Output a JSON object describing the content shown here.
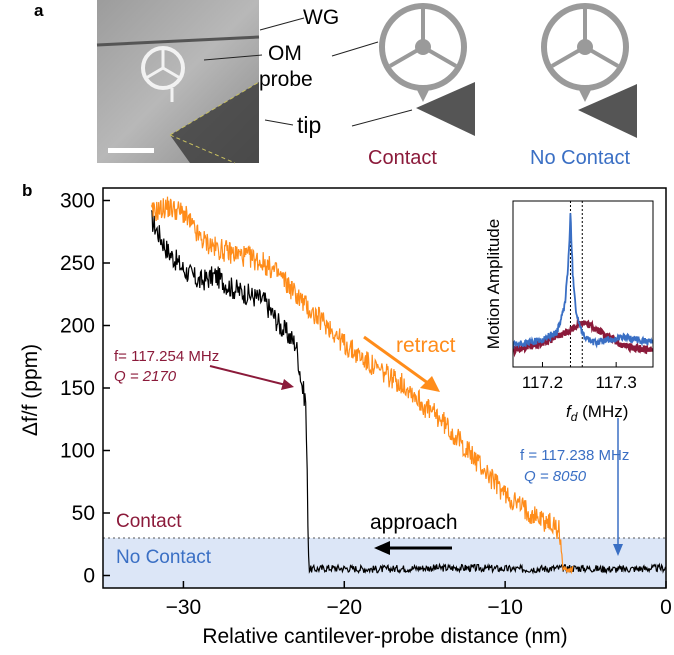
{
  "panel_a": {
    "panel_label": "a",
    "wg_label": "WG",
    "om_label": "OM",
    "probe_label": "probe",
    "tip_label": "tip",
    "contact_label": "Contact",
    "no_contact_label": "No Contact",
    "contact_color": "#8b1a3a",
    "no_contact_color": "#3a6fc4",
    "icon_gray": "#9a9a9a",
    "tip_gray": "#555555"
  },
  "panel_b": {
    "panel_label": "b",
    "retract_label": "retract",
    "approach_label": "approach",
    "contact_region_label": "Contact",
    "no_contact_region_label": "No Contact",
    "contact_annotation": {
      "f_text": "f= 117.254 MHz",
      "q_text": "Q = 2170"
    },
    "no_contact_annotation": {
      "f_text": "f = 117.238 MHz",
      "q_text": "Q = 8050"
    }
  },
  "chart_data": [
    {
      "type": "line",
      "xlabel": "Relative cantilever-probe distance (nm)",
      "ylabel": "Δf/f (ppm)",
      "xlim": [
        -35,
        0
      ],
      "ylim": [
        -10,
        310
      ],
      "xticks": [
        -30,
        -20,
        -10,
        0
      ],
      "yticks": [
        0,
        50,
        100,
        150,
        200,
        250,
        300
      ],
      "threshold_y": 30,
      "series": [
        {
          "name": "approach",
          "color": "#000000",
          "x": [
            -32,
            -31,
            -30,
            -29,
            -28,
            -27,
            -26,
            -25,
            -24,
            -23,
            -22.6,
            -22.4,
            -22.2,
            -22.0,
            -21,
            -18,
            -15,
            -12,
            -9,
            -6,
            -3,
            0
          ],
          "y": [
            285,
            260,
            245,
            235,
            240,
            230,
            225,
            220,
            200,
            185,
            150,
            140,
            5,
            5,
            6,
            5,
            6,
            6,
            5,
            6,
            5,
            6
          ]
        },
        {
          "name": "retract",
          "color": "#ff8c1a",
          "x": [
            -32,
            -31,
            -30,
            -29,
            -28,
            -27,
            -26,
            -25,
            -24,
            -23,
            -22,
            -21,
            -20,
            -19,
            -18,
            -17,
            -16,
            -15,
            -14,
            -13,
            -12,
            -11,
            -10,
            -9,
            -8,
            -7,
            -6.6,
            -6.4,
            -6.2,
            -5.8
          ],
          "y": [
            290,
            295,
            290,
            270,
            262,
            258,
            255,
            250,
            240,
            225,
            210,
            200,
            185,
            175,
            165,
            158,
            150,
            135,
            125,
            110,
            95,
            80,
            65,
            55,
            47,
            40,
            35,
            5,
            5,
            5
          ]
        }
      ]
    },
    {
      "type": "line",
      "xlabel": "fd (MHz)",
      "ylabel": "Motion Amplitude",
      "xlim": [
        117.16,
        117.35
      ],
      "xticks": [
        117.2,
        117.3
      ],
      "vlines": [
        117.238,
        117.254
      ],
      "series": [
        {
          "name": "No Contact",
          "color": "#3a6fc4",
          "x": [
            117.16,
            117.18,
            117.2,
            117.22,
            117.23,
            117.235,
            117.238,
            117.241,
            117.246,
            117.255,
            117.27,
            117.29,
            117.31,
            117.33,
            117.35
          ],
          "y": [
            0.08,
            0.1,
            0.12,
            0.18,
            0.35,
            0.65,
            1.0,
            0.6,
            0.3,
            0.15,
            0.1,
            0.12,
            0.14,
            0.12,
            0.1
          ]
        },
        {
          "name": "Contact",
          "color": "#8b1a3a",
          "x": [
            117.16,
            117.18,
            117.2,
            117.22,
            117.24,
            117.254,
            117.27,
            117.29,
            117.31,
            117.33,
            117.35
          ],
          "y": [
            0.05,
            0.07,
            0.1,
            0.14,
            0.2,
            0.25,
            0.21,
            0.14,
            0.08,
            0.06,
            0.05
          ]
        }
      ]
    }
  ]
}
